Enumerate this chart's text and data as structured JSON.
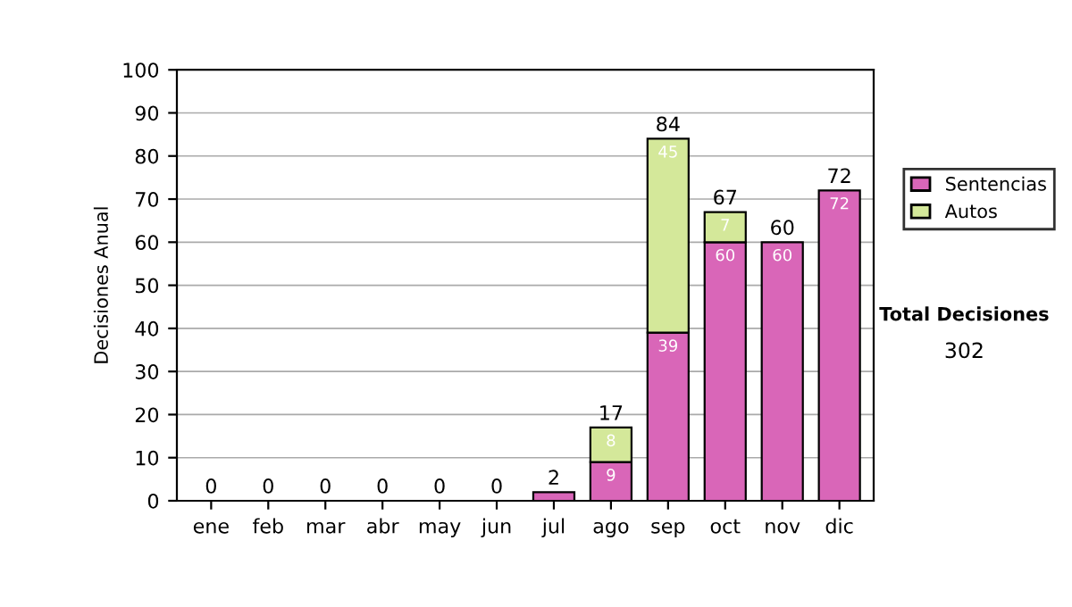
{
  "chart_data": {
    "type": "bar",
    "stacked": true,
    "ylabel": "Decisiones Anual",
    "categories": [
      "ene",
      "feb",
      "mar",
      "abr",
      "may",
      "jun",
      "jul",
      "ago",
      "sep",
      "oct",
      "nov",
      "dic"
    ],
    "series": [
      {
        "name": "Sentencias",
        "color": "#d966b8",
        "values": [
          null,
          null,
          null,
          null,
          null,
          null,
          2,
          9,
          39,
          60,
          60,
          72
        ],
        "value_labels": [
          null,
          null,
          null,
          null,
          null,
          null,
          null,
          "9",
          "39",
          "60",
          "60",
          "72"
        ]
      },
      {
        "name": "Autos",
        "color": "#d4e89a",
        "values": [
          null,
          null,
          null,
          null,
          null,
          null,
          null,
          8,
          45,
          7,
          null,
          null
        ],
        "value_labels": [
          null,
          null,
          null,
          null,
          null,
          null,
          null,
          "8",
          "45",
          "7",
          null,
          null
        ]
      }
    ],
    "totals": [
      "0",
      "0",
      "0",
      "0",
      "0",
      "0",
      "2",
      "17",
      "84",
      "67",
      "60",
      "72"
    ],
    "ylim": [
      0,
      100
    ],
    "yticks": [
      0,
      10,
      20,
      30,
      40,
      50,
      60,
      70,
      80,
      90,
      100
    ],
    "grid": "y",
    "legend": "right",
    "annotations": [
      "Total Decisiones",
      "302"
    ]
  }
}
